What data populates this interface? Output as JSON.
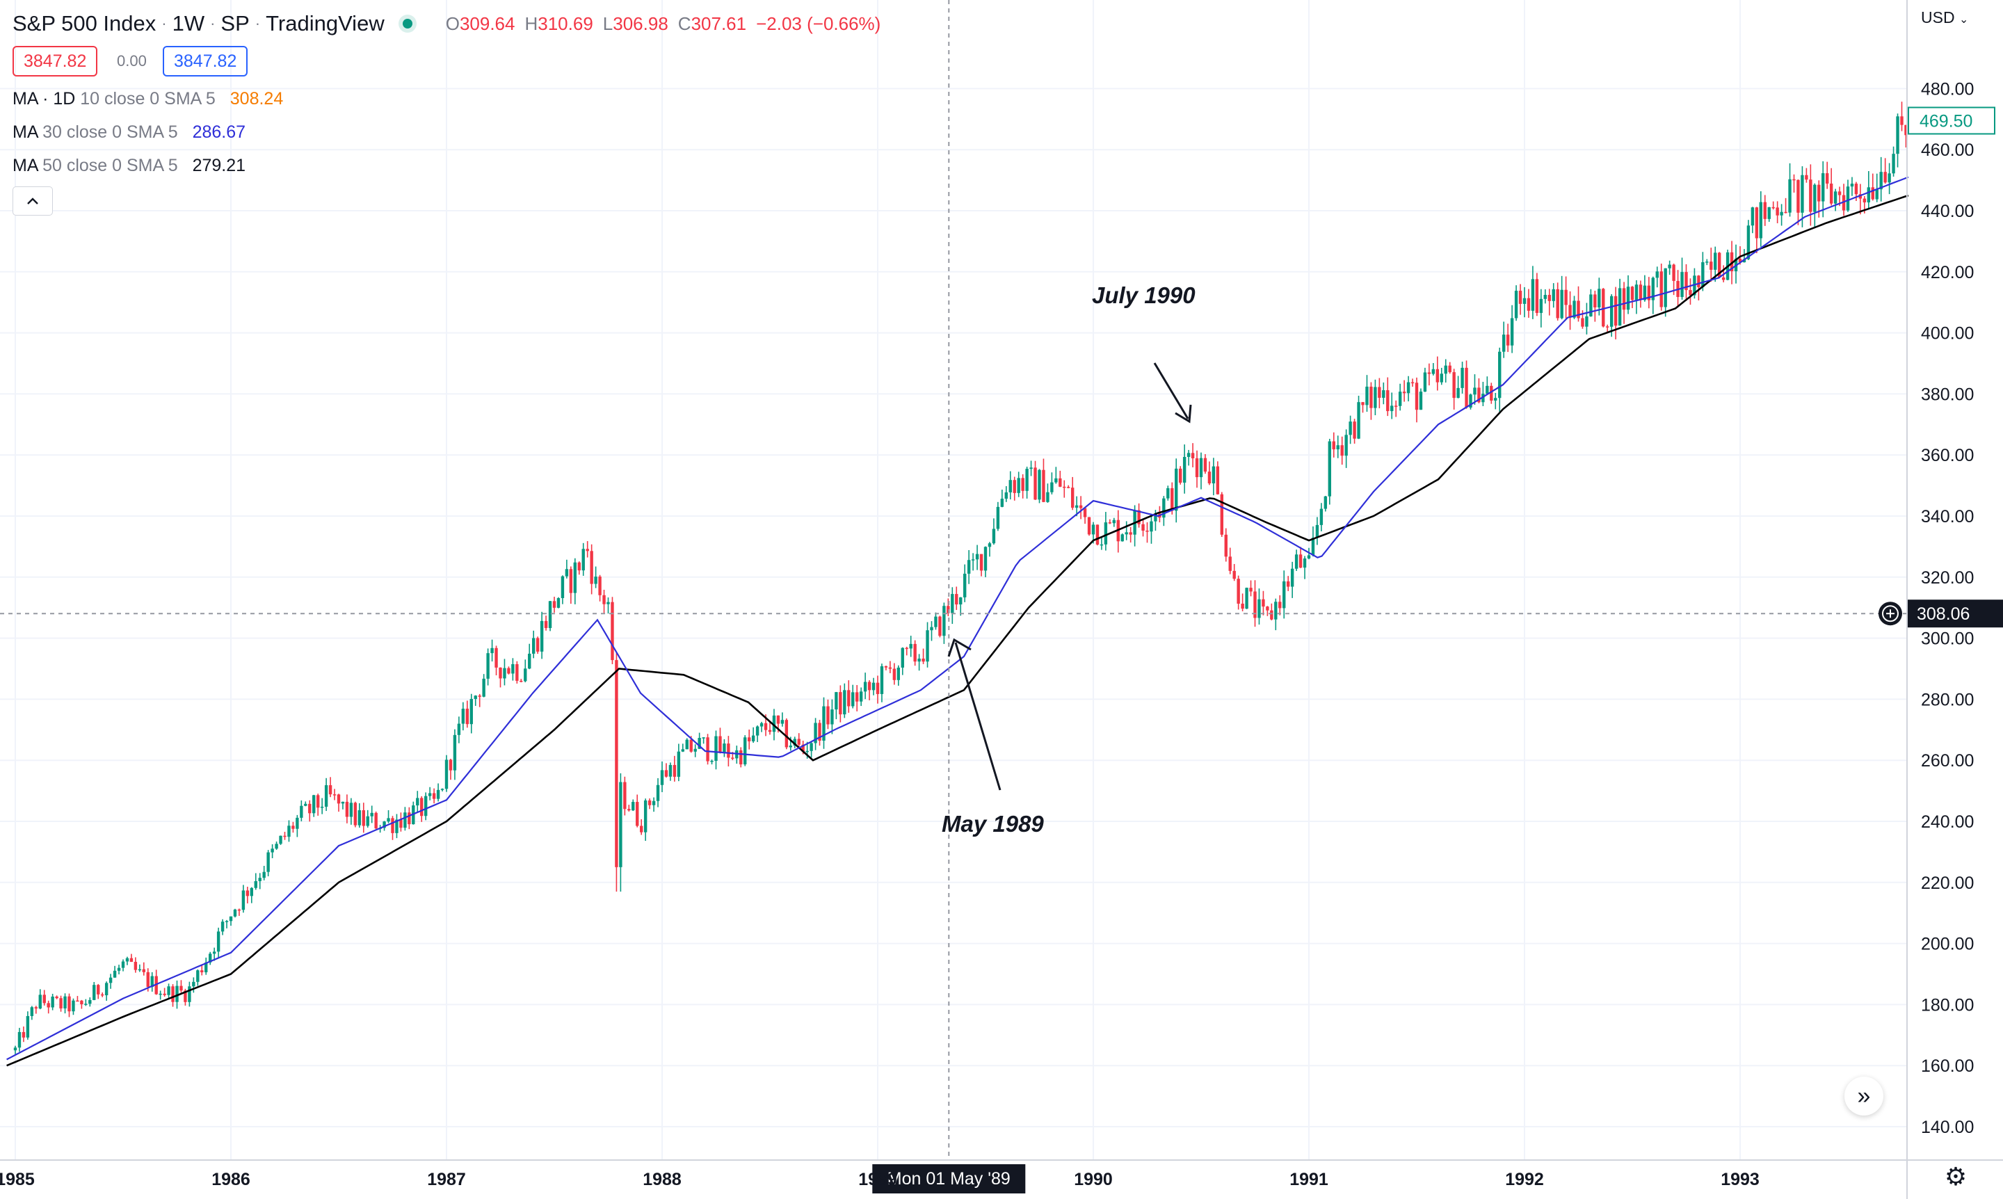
{
  "header": {
    "symbol": "S&P 500 Index",
    "interval": "1W",
    "exchange": "SP",
    "source": "TradingView",
    "ohlc": {
      "o_label": "O",
      "o": "309.64",
      "h_label": "H",
      "h": "310.69",
      "l_label": "L",
      "l": "306.98",
      "c_label": "C",
      "c": "307.61",
      "change": "−2.03 (−0.66%)"
    }
  },
  "quote": {
    "bid": "3847.82",
    "spread": "0.00",
    "ask": "3847.82"
  },
  "indicators": [
    {
      "label": "MA · 1D",
      "params": "10 close 0 SMA 5",
      "value": "308.24",
      "color": "#f57c00"
    },
    {
      "label": "MA",
      "params": "30 close 0 SMA 5",
      "value": "286.67",
      "color": "#2f2fd8"
    },
    {
      "label": "MA",
      "params": "50 close 0 SMA 5",
      "value": "279.21",
      "color": "#131722"
    }
  ],
  "currency": "USD",
  "crosshair": {
    "price": "308.06",
    "date": "Mon 01 May '89"
  },
  "last_price": "469.50",
  "annotations": [
    "July 1990",
    "May 1989"
  ],
  "icons": {
    "collapse": "chevron-up-icon",
    "goto": "double-chevron-right-icon",
    "settings": "gear-icon",
    "crosshair_add": "plus-circle-icon"
  },
  "colors": {
    "up": "#089981",
    "down": "#f23645",
    "ma30": "#2f2fd8",
    "ma50": "#000000",
    "ma10": "#f57c00"
  },
  "chart_data": {
    "type": "candlestick",
    "title": "S&P 500 Index",
    "xlabel": "",
    "ylabel": "",
    "x_ticks": [
      "1985",
      "1986",
      "1987",
      "1988",
      "1989",
      "1990",
      "1991",
      "1992",
      "1993"
    ],
    "y_ticks": [
      "140.00",
      "160.00",
      "180.00",
      "200.00",
      "220.00",
      "240.00",
      "260.00",
      "280.00",
      "300.00",
      "320.00",
      "340.00",
      "360.00",
      "380.00",
      "400.00",
      "420.00",
      "440.00",
      "460.00",
      "480.00"
    ],
    "ylim": [
      129.7,
      485.7
    ],
    "xlim": [
      1984.96,
      1993.78
    ],
    "grid": true,
    "anchors": [
      [
        1985.0,
        165
      ],
      [
        1985.1,
        181
      ],
      [
        1985.3,
        179
      ],
      [
        1985.5,
        193
      ],
      [
        1985.7,
        184
      ],
      [
        1985.8,
        184
      ],
      [
        1986.0,
        210
      ],
      [
        1986.15,
        225
      ],
      [
        1986.3,
        240
      ],
      [
        1986.45,
        248
      ],
      [
        1986.6,
        240
      ],
      [
        1986.75,
        240
      ],
      [
        1986.95,
        246
      ],
      [
        1987.05,
        268
      ],
      [
        1987.2,
        292
      ],
      [
        1987.35,
        290
      ],
      [
        1987.5,
        312
      ],
      [
        1987.6,
        322
      ],
      [
        1987.65,
        330
      ],
      [
        1987.7,
        315
      ],
      [
        1987.75,
        312
      ],
      [
        1987.8,
        250
      ],
      [
        1987.9,
        240
      ],
      [
        1988.0,
        255
      ],
      [
        1988.15,
        265
      ],
      [
        1988.35,
        262
      ],
      [
        1988.5,
        272
      ],
      [
        1988.65,
        263
      ],
      [
        1988.8,
        278
      ],
      [
        1988.95,
        282
      ],
      [
        1989.1,
        292
      ],
      [
        1989.2,
        295
      ],
      [
        1989.33,
        310
      ],
      [
        1989.5,
        330
      ],
      [
        1989.6,
        352
      ],
      [
        1989.75,
        350
      ],
      [
        1989.85,
        350
      ],
      [
        1989.95,
        340
      ],
      [
        1990.05,
        335
      ],
      [
        1990.2,
        338
      ],
      [
        1990.35,
        345
      ],
      [
        1990.45,
        360
      ],
      [
        1990.55,
        356
      ],
      [
        1990.65,
        318
      ],
      [
        1990.8,
        305
      ],
      [
        1990.95,
        325
      ],
      [
        1991.0,
        322
      ],
      [
        1991.1,
        360
      ],
      [
        1991.3,
        380
      ],
      [
        1991.5,
        380
      ],
      [
        1991.65,
        385
      ],
      [
        1991.85,
        378
      ],
      [
        1991.98,
        415
      ],
      [
        1992.2,
        408
      ],
      [
        1992.4,
        408
      ],
      [
        1992.55,
        416
      ],
      [
        1992.8,
        415
      ],
      [
        1993.0,
        430
      ],
      [
        1993.2,
        445
      ],
      [
        1993.4,
        445
      ],
      [
        1993.6,
        448
      ],
      [
        1993.75,
        465
      ]
    ],
    "ma30_anchors": [
      [
        1984.96,
        162
      ],
      [
        1985.5,
        182
      ],
      [
        1986.0,
        197
      ],
      [
        1986.5,
        232
      ],
      [
        1987.0,
        247
      ],
      [
        1987.4,
        282
      ],
      [
        1987.7,
        306
      ],
      [
        1987.9,
        282
      ],
      [
        1988.2,
        263
      ],
      [
        1988.55,
        261
      ],
      [
        1988.8,
        270
      ],
      [
        1989.2,
        283
      ],
      [
        1989.4,
        294
      ],
      [
        1989.65,
        325
      ],
      [
        1990.0,
        345
      ],
      [
        1990.3,
        340
      ],
      [
        1990.5,
        346
      ],
      [
        1990.75,
        338
      ],
      [
        1991.05,
        326
      ],
      [
        1991.3,
        348
      ],
      [
        1991.6,
        370
      ],
      [
        1991.9,
        383
      ],
      [
        1992.2,
        405
      ],
      [
        1992.6,
        412
      ],
      [
        1992.9,
        418
      ],
      [
        1993.3,
        438
      ],
      [
        1993.78,
        451
      ]
    ],
    "ma50_anchors": [
      [
        1984.96,
        160
      ],
      [
        1985.5,
        176
      ],
      [
        1986.0,
        190
      ],
      [
        1986.5,
        220
      ],
      [
        1987.0,
        240
      ],
      [
        1987.5,
        270
      ],
      [
        1987.8,
        290
      ],
      [
        1988.1,
        288
      ],
      [
        1988.4,
        279
      ],
      [
        1988.7,
        260
      ],
      [
        1989.0,
        270
      ],
      [
        1989.4,
        283
      ],
      [
        1989.7,
        310
      ],
      [
        1990.0,
        332
      ],
      [
        1990.3,
        341
      ],
      [
        1990.55,
        346
      ],
      [
        1990.8,
        338
      ],
      [
        1991.0,
        332
      ],
      [
        1991.3,
        340
      ],
      [
        1991.6,
        352
      ],
      [
        1991.9,
        375
      ],
      [
        1992.3,
        398
      ],
      [
        1992.7,
        408
      ],
      [
        1993.0,
        425
      ],
      [
        1993.4,
        436
      ],
      [
        1993.78,
        445
      ]
    ]
  }
}
